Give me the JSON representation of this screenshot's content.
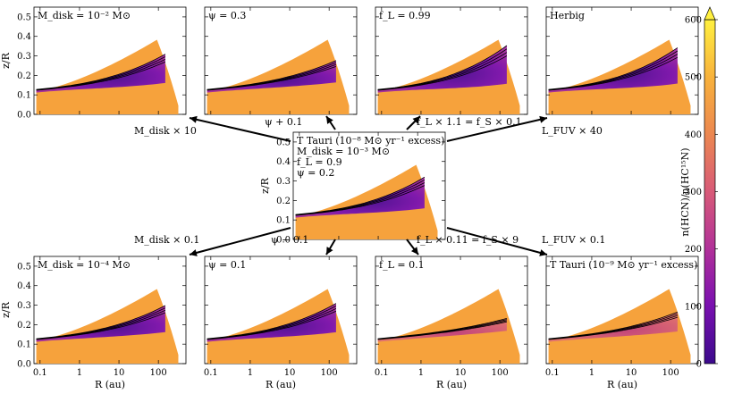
{
  "chart_data": {
    "type": "heatmap",
    "xlabel": "R (au)",
    "ylabel": "z/R",
    "x_scale": "log",
    "xlim": [
      0.07,
      500
    ],
    "ylim": [
      0.0,
      0.55
    ],
    "x_ticks": [
      "0.1",
      "1",
      "10",
      "100"
    ],
    "y_ticks": [
      "0.0",
      "0.1",
      "0.2",
      "0.3",
      "0.4",
      "0.5"
    ],
    "colorbar": {
      "label": "n(HCN)/n(HC¹⁵N)",
      "range": [
        0,
        600
      ],
      "ticks": [
        "0",
        "100",
        "200",
        "300",
        "400",
        "500",
        "600"
      ],
      "colors": [
        "#3b0a8c",
        "#7a10b0",
        "#b0309a",
        "#d85a78",
        "#ec8850",
        "#f8b13c",
        "#fff040"
      ]
    },
    "panels": [
      {
        "id": "mdisk-high",
        "label": "M_disk = 10⁻² M⊙",
        "label_html": "M<tspan font-size='8' baseline-shift='-3'>disk</tspan> = 10<tspan font-size='8' baseline-shift='5'>−2</tspan> M<tspan font-size='8' baseline-shift='-3'>⊙</tspan>",
        "fraction_depleted": 0.55
      },
      {
        "id": "psi-high",
        "label": "ψ = 0.3",
        "fraction_depleted": 0.4
      },
      {
        "id": "fl-high",
        "label": "f_L = 0.99",
        "label_html": "f<tspan font-size='8' baseline-shift='-3'>L</tspan> = 0.99",
        "fraction_depleted": 0.75
      },
      {
        "id": "herbig",
        "label": "Herbig",
        "fraction_depleted": 0.7
      },
      {
        "id": "fiducial",
        "label_lines": [
          "T Tauri (10⁻⁸ M⊙ yr⁻¹ excess)",
          "M_disk = 10⁻³ M⊙",
          "f_L = 0.9",
          "ψ = 0.2"
        ],
        "fraction_depleted": 0.6
      },
      {
        "id": "mdisk-low",
        "label": "M_disk = 10⁻⁴ M⊙",
        "label_html": "M<tspan font-size='8' baseline-shift='-3'>disk</tspan> = 10<tspan font-size='8' baseline-shift='5'>−4</tspan> M<tspan font-size='8' baseline-shift='-3'>⊙</tspan>",
        "fraction_depleted": 0.5
      },
      {
        "id": "psi-low",
        "label": "ψ = 0.1",
        "fraction_depleted": 0.55
      },
      {
        "id": "fl-low",
        "label": "f_L = 0.1",
        "label_html": "f<tspan font-size='8' baseline-shift='-3'>L</tspan> = 0.1",
        "fraction_depleted": 0.2
      },
      {
        "id": "ttauri-low",
        "label": "T Tauri (10⁻⁹ M⊙ yr⁻¹ excess)",
        "fraction_depleted": 0.35
      }
    ],
    "arrows": [
      {
        "from": "fiducial",
        "to": "mdisk-high",
        "label": "M_disk × 10"
      },
      {
        "from": "fiducial",
        "to": "psi-high",
        "label": "ψ + 0.1"
      },
      {
        "from": "fiducial",
        "to": "fl-high",
        "label": "f_L × 1.1 = f_S × 0.1"
      },
      {
        "from": "fiducial",
        "to": "herbig",
        "label": "L_FUV × 40"
      },
      {
        "from": "fiducial",
        "to": "mdisk-low",
        "label": "M_disk × 0.1"
      },
      {
        "from": "fiducial",
        "to": "psi-low",
        "label": "ψ − 0.1"
      },
      {
        "from": "fiducial",
        "to": "fl-low",
        "label": "f_L × 0.11 = f_S × 9"
      },
      {
        "from": "fiducial",
        "to": "ttauri-low",
        "label": "L_FUV × 0.1"
      }
    ]
  }
}
